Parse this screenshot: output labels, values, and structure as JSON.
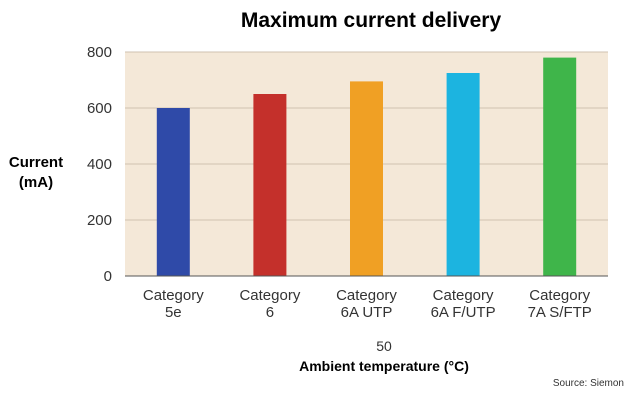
{
  "chart_data": {
    "type": "bar",
    "title": "Maximum current delivery",
    "ylabel_lines": [
      "Current",
      "(mA)"
    ],
    "xlabel_sub": "50",
    "xlabel": "Ambient temperature (°C)",
    "source": "Source: Siemon",
    "ylim": [
      0,
      800
    ],
    "yticks": [
      0,
      200,
      400,
      600,
      800
    ],
    "grid": true,
    "categories": [
      [
        "Category",
        "5e"
      ],
      [
        "Category",
        "6"
      ],
      [
        "Category",
        "6A UTP"
      ],
      [
        "Category",
        "6A F/UTP"
      ],
      [
        "Category",
        "7A S/FTP"
      ]
    ],
    "values": [
      600,
      650,
      695,
      725,
      780
    ],
    "colors": [
      "#2f4aa8",
      "#c4302b",
      "#f0a024",
      "#1cb4e0",
      "#3fb54a"
    ],
    "plot_background": "#f4e8d8"
  }
}
